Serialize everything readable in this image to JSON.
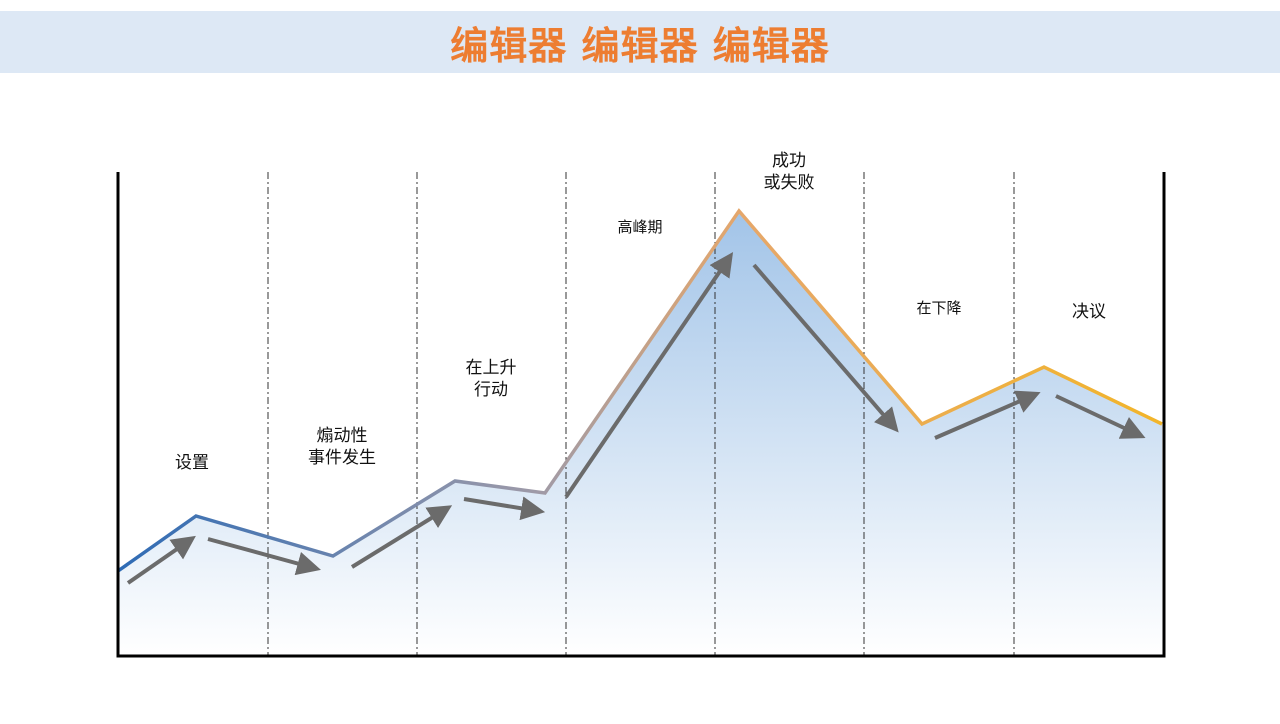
{
  "header": {
    "title": "编辑器 编辑器 编辑器"
  },
  "colors": {
    "title_bar_bg": "#dde8f5",
    "title_text": "#ed7d31",
    "line_start": "#2e6bb5",
    "line_mid": "#9e9aa8",
    "line_end": "#f2b52a",
    "fill_top": "#a2c4e8",
    "fill_bottom": "#ffffff",
    "arrow": "#6b6b6b",
    "frame": "#000000",
    "divider": "#333333"
  },
  "diagram": {
    "stages": [
      {
        "lines": [
          "设置"
        ]
      },
      {
        "lines": [
          "煽动性",
          "事件发生"
        ]
      },
      {
        "lines": [
          "在上升",
          "行动"
        ]
      },
      {
        "lines": [
          "高峰期"
        ]
      },
      {
        "lines": [
          "成功",
          "或失败"
        ]
      },
      {
        "lines": [
          "在下降"
        ]
      },
      {
        "lines": [
          "决议"
        ]
      }
    ],
    "divider_style": "dash-dot"
  }
}
